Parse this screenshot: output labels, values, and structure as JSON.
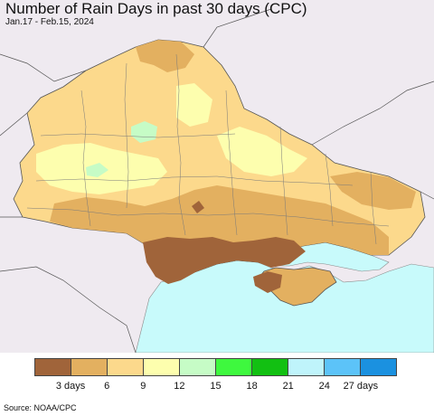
{
  "title": "Number of Rain Days in past 30 days (CPC)",
  "date_range": "Jan.17 - Feb.15, 2024",
  "source": "Source: NOAA/CPC",
  "legend": {
    "colors": [
      "#a0643a",
      "#e3b060",
      "#fcd98c",
      "#fdfeae",
      "#c6fcc6",
      "#3ef83e",
      "#12c012",
      "#bff4fb",
      "#5cc3f8",
      "#1b91e0"
    ],
    "tick_labels": [
      "3 days",
      "6",
      "9",
      "12",
      "15",
      "18",
      "21",
      "24",
      "27 days"
    ]
  },
  "map": {
    "water_color": "#c8fafb",
    "outside_color": "#efeaf0",
    "region": "Ukraine"
  }
}
